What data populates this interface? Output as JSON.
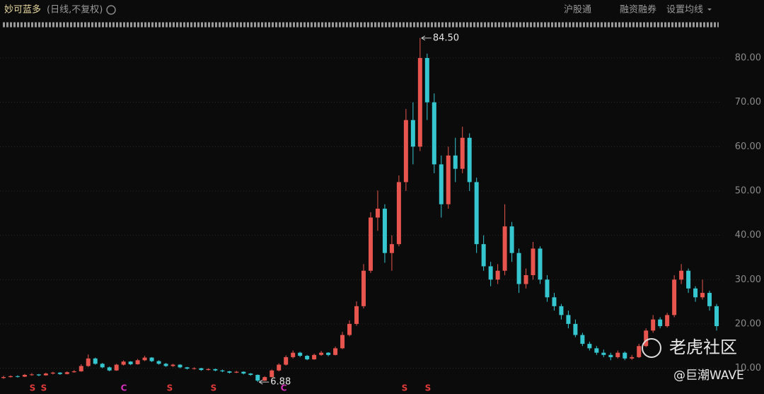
{
  "header": {
    "name": "妙可蓝多",
    "mode": "(日线,不复权)",
    "links": [
      "沪股通",
      "融资融券",
      "设置均线"
    ]
  },
  "chart_data": {
    "type": "candlestick",
    "up_color": "#e8554e",
    "down_color": "#35c6cf",
    "ylim": [
      6.1,
      88.3
    ],
    "yticks": [
      {
        "value": 10,
        "label": "10.00"
      },
      {
        "value": 20,
        "label": "20.00"
      },
      {
        "value": 30,
        "label": "30.00"
      },
      {
        "value": 40,
        "label": "40.00"
      },
      {
        "value": 50,
        "label": "50.00"
      },
      {
        "value": 60,
        "label": "60.00"
      },
      {
        "value": 70,
        "label": "70.00"
      },
      {
        "value": 80,
        "label": "80.00"
      }
    ],
    "grid": true,
    "candles": [
      [
        7.8,
        8.3,
        7.6,
        8.0
      ],
      [
        8.0,
        8.4,
        7.9,
        8.2
      ],
      [
        8.2,
        8.4,
        7.9,
        8.1
      ],
      [
        8.1,
        8.7,
        8.0,
        8.5
      ],
      [
        8.5,
        8.9,
        8.3,
        8.6
      ],
      [
        8.6,
        8.7,
        8.2,
        8.4
      ],
      [
        8.4,
        9.0,
        8.3,
        8.8
      ],
      [
        8.8,
        9.2,
        8.6,
        9.0
      ],
      [
        9.0,
        9.1,
        8.5,
        8.7
      ],
      [
        8.7,
        9.3,
        8.6,
        9.1
      ],
      [
        9.1,
        9.6,
        9.0,
        9.3
      ],
      [
        9.3,
        10.9,
        9.2,
        10.5
      ],
      [
        10.5,
        13.1,
        10.3,
        12.2
      ],
      [
        12.2,
        12.4,
        10.8,
        11.0
      ],
      [
        11.0,
        11.2,
        10.0,
        10.2
      ],
      [
        10.2,
        10.4,
        9.3,
        9.5
      ],
      [
        9.5,
        11.0,
        9.4,
        10.8
      ],
      [
        10.8,
        11.8,
        10.6,
        11.5
      ],
      [
        11.5,
        11.6,
        10.7,
        10.9
      ],
      [
        10.9,
        12.1,
        10.8,
        11.8
      ],
      [
        11.8,
        12.8,
        11.6,
        12.4
      ],
      [
        12.4,
        12.5,
        11.4,
        11.6
      ],
      [
        11.6,
        11.8,
        10.8,
        11.0
      ],
      [
        11.0,
        11.2,
        10.3,
        10.5
      ],
      [
        10.5,
        11.0,
        10.3,
        10.8
      ],
      [
        10.8,
        10.9,
        10.0,
        10.2
      ],
      [
        10.2,
        10.3,
        9.7,
        9.9
      ],
      [
        9.9,
        10.2,
        9.7,
        10.0
      ],
      [
        10.0,
        10.1,
        9.4,
        9.6
      ],
      [
        9.6,
        10.0,
        9.5,
        9.8
      ],
      [
        9.8,
        9.9,
        9.3,
        9.5
      ],
      [
        9.5,
        9.7,
        9.1,
        9.3
      ],
      [
        9.3,
        9.4,
        8.8,
        9.0
      ],
      [
        9.0,
        9.4,
        8.9,
        9.2
      ],
      [
        9.2,
        9.3,
        8.6,
        8.8
      ],
      [
        8.8,
        8.9,
        8.3,
        8.5
      ],
      [
        8.5,
        8.6,
        6.88,
        7.2
      ],
      [
        7.2,
        8.2,
        7.1,
        8.0
      ],
      [
        8.0,
        9.7,
        7.9,
        9.5
      ],
      [
        9.5,
        11.1,
        9.3,
        10.8
      ],
      [
        10.8,
        12.9,
        10.6,
        12.5
      ],
      [
        12.5,
        14.0,
        12.2,
        13.5
      ],
      [
        13.5,
        13.7,
        12.5,
        12.8
      ],
      [
        12.8,
        13.0,
        11.8,
        12.0
      ],
      [
        12.0,
        13.3,
        11.9,
        13.0
      ],
      [
        13.0,
        13.9,
        12.8,
        13.5
      ],
      [
        13.5,
        13.6,
        12.7,
        13.0
      ],
      [
        13.0,
        14.9,
        12.9,
        14.5
      ],
      [
        14.5,
        18.2,
        14.3,
        17.5
      ],
      [
        17.5,
        20.8,
        17.2,
        20.0
      ],
      [
        20.0,
        25.1,
        19.6,
        24.0
      ],
      [
        24.0,
        33.5,
        23.5,
        32.0
      ],
      [
        32.0,
        45.2,
        31.5,
        44.0
      ],
      [
        44.0,
        50.1,
        41.0,
        46.0
      ],
      [
        46.0,
        47.0,
        33.8,
        36.0
      ],
      [
        36.0,
        40.0,
        32.0,
        38.0
      ],
      [
        38.0,
        53.5,
        37.5,
        52.0
      ],
      [
        52.0,
        68.5,
        50.0,
        66.0
      ],
      [
        66.0,
        70.0,
        56.0,
        60.0
      ],
      [
        60.0,
        84.5,
        59.0,
        80.0
      ],
      [
        80.0,
        81.0,
        66.0,
        70.0
      ],
      [
        70.0,
        72.0,
        54.0,
        56.0
      ],
      [
        56.0,
        58.0,
        44.0,
        47.0
      ],
      [
        47.0,
        60.0,
        46.0,
        58.0
      ],
      [
        58.0,
        62.0,
        52.0,
        55.0
      ],
      [
        55.0,
        64.5,
        54.0,
        62.0
      ],
      [
        62.0,
        63.0,
        50.0,
        52.0
      ],
      [
        52.0,
        53.0,
        36.0,
        38.0
      ],
      [
        38.0,
        40.0,
        32.0,
        33.0
      ],
      [
        33.0,
        34.0,
        28.5,
        30.0
      ],
      [
        30.0,
        33.5,
        29.0,
        32.0
      ],
      [
        32.0,
        47.0,
        31.0,
        42.0
      ],
      [
        42.0,
        43.0,
        34.0,
        36.0
      ],
      [
        36.0,
        37.0,
        27.0,
        29.0
      ],
      [
        29.0,
        32.5,
        28.0,
        31.0
      ],
      [
        31.0,
        38.5,
        30.0,
        37.0
      ],
      [
        37.0,
        37.5,
        29.0,
        30.0
      ],
      [
        30.0,
        31.0,
        25.0,
        26.0
      ],
      [
        26.0,
        27.0,
        23.0,
        24.0
      ],
      [
        24.0,
        24.5,
        21.0,
        22.0
      ],
      [
        22.0,
        23.0,
        19.0,
        20.0
      ],
      [
        20.0,
        21.0,
        17.0,
        17.5
      ],
      [
        17.5,
        18.0,
        15.0,
        15.5
      ],
      [
        15.5,
        16.0,
        14.0,
        14.5
      ],
      [
        14.5,
        15.0,
        13.0,
        13.5
      ],
      [
        13.5,
        14.2,
        12.5,
        13.0
      ],
      [
        13.0,
        13.5,
        11.8,
        12.5
      ],
      [
        12.5,
        14.0,
        12.2,
        13.5
      ],
      [
        13.5,
        13.8,
        11.8,
        12.2
      ],
      [
        12.2,
        13.0,
        11.9,
        12.5
      ],
      [
        12.5,
        15.5,
        12.3,
        15.0
      ],
      [
        15.0,
        19.0,
        14.8,
        18.5
      ],
      [
        18.5,
        22.0,
        18.0,
        21.0
      ],
      [
        21.0,
        21.5,
        19.0,
        19.5
      ],
      [
        19.5,
        22.5,
        19.2,
        22.0
      ],
      [
        22.0,
        31.0,
        21.5,
        30.0
      ],
      [
        30.0,
        33.5,
        29.0,
        32.0
      ],
      [
        32.0,
        32.5,
        27.0,
        28.0
      ],
      [
        28.0,
        28.5,
        25.0,
        26.0
      ],
      [
        26.0,
        30.0,
        25.5,
        27.0
      ],
      [
        27.0,
        27.5,
        23.0,
        24.0
      ],
      [
        24.0,
        24.5,
        18.5,
        19.5
      ]
    ],
    "annotations": [
      {
        "value": 84.5,
        "label": "84.50"
      },
      {
        "value": 6.88,
        "label": "6.88"
      }
    ],
    "markers": [
      "S",
      "S",
      "C",
      "S",
      "S",
      "C",
      "S",
      "S"
    ]
  },
  "watermark": {
    "brand": "老虎社区",
    "author": "@巨潮WAVE"
  }
}
